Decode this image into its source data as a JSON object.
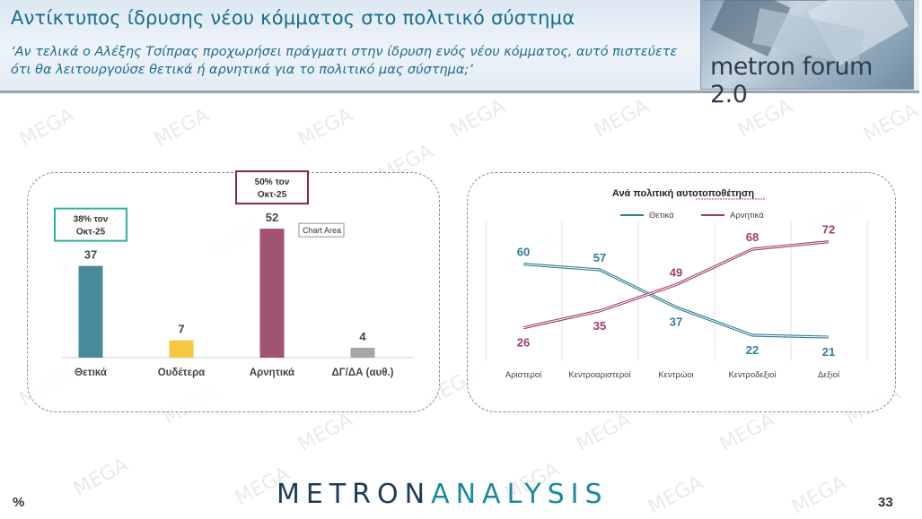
{
  "header": {
    "title": "Αντίκτυπος ίδρυσης νέου κόμματος στο πολιτικό σύστημα",
    "subtitle": "‘Αν τελικά ο Αλέξης Τσίπρας προχωρήσει πράγματι στην ίδρυση ενός νέου κόμματος, αυτό πιστεύετε ότι θα λειτουργούσε θετικά ή αρνητικά για το πολιτικό μας σύστημα;’",
    "logo_text": "metron forum 2.0"
  },
  "watermark": "MEGA",
  "footer": {
    "brand_part1": "METRON",
    "brand_part2": "ANALYSIS",
    "unit": "%",
    "page_number": "33"
  },
  "chart_data": [
    {
      "type": "bar",
      "categories": [
        "Θετικά",
        "Ουδέτερα",
        "Αρνητικά",
        "ΔΓ/ΔΑ (αυθ.)"
      ],
      "values": [
        37,
        7,
        52,
        4
      ],
      "colors": [
        "#4a8b9b",
        "#f5c842",
        "#a25275",
        "#a6a6a6"
      ],
      "ylim": [
        0,
        60
      ],
      "callouts": [
        {
          "category": "Θετικά",
          "line1": "38% τον",
          "line2": "Οκτ-25",
          "border_color": "#2bb3a0"
        },
        {
          "category": "Αρνητικά",
          "line1": "50% τον",
          "line2": "Οκτ-25",
          "border_color": "#7a2a55"
        }
      ],
      "tooltip": "Chart Area"
    },
    {
      "type": "line",
      "title": "Ανά πολιτική αυτοτοποθέτηση",
      "categories": [
        "Αριστεροί",
        "Κεντροαριστεροί",
        "Κεντρώοι",
        "Κεντροδεξιοί",
        "Δεξιοί"
      ],
      "series": [
        {
          "name": "Θετικά",
          "values": [
            60,
            57,
            37,
            22,
            21
          ],
          "color": "#2f7e93"
        },
        {
          "name": "Αρνητικά",
          "values": [
            26,
            35,
            49,
            68,
            72
          ],
          "color": "#a03c6e"
        }
      ],
      "ylim": [
        10,
        80
      ],
      "legend": "top"
    }
  ]
}
